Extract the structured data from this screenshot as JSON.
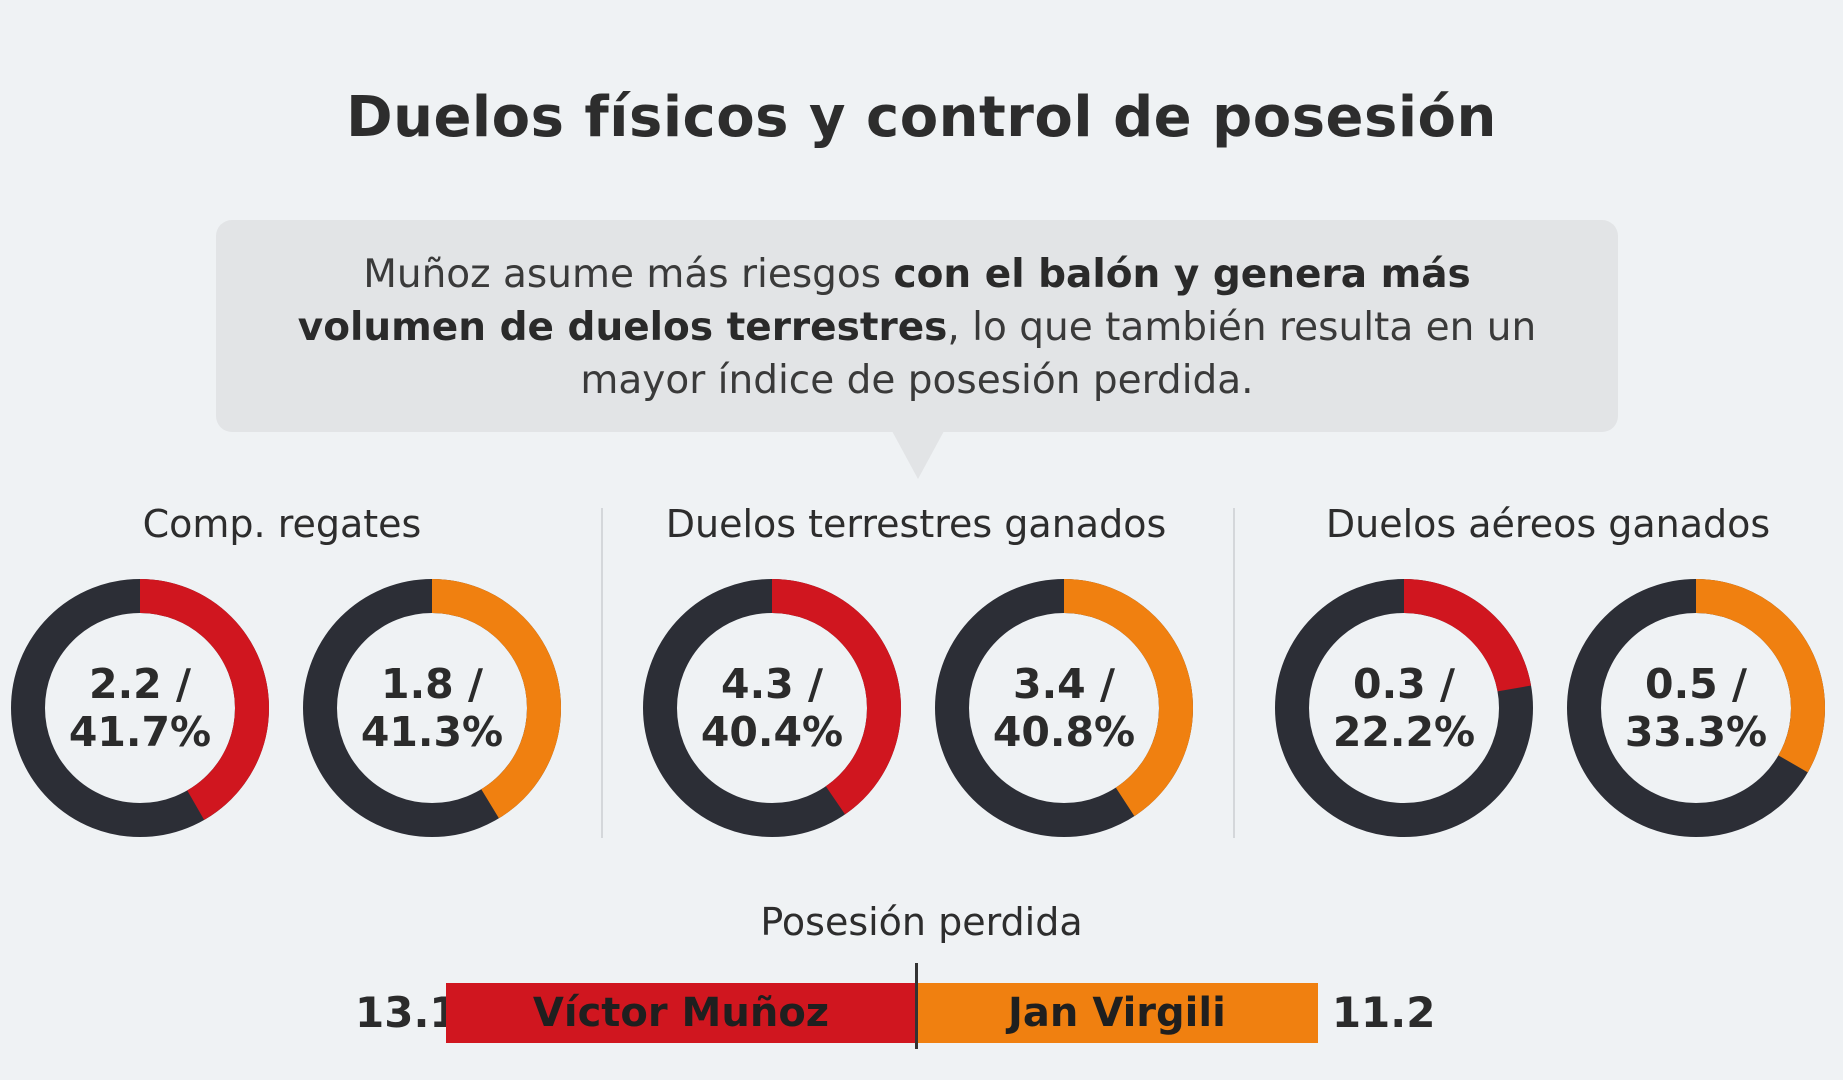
{
  "title": "Duelos físicos y control de posesión",
  "callout": {
    "part1": "Muñoz asume más riesgos ",
    "bold": "con el balón y genera más volumen de duelos terrestres",
    "part2": ", lo que también resulta en un mayor índice de posesión perdida."
  },
  "colors": {
    "player1": "#d0161f",
    "player2": "#f08010",
    "ring_base": "#2c2e36"
  },
  "chart_data": [
    {
      "type": "pie",
      "title": "Comp. regates",
      "series": [
        {
          "name": "Víctor Muñoz",
          "value": 2.2,
          "percent": 41.7,
          "label": "2.2 /",
          "label_pct": "41.7%"
        },
        {
          "name": "Jan Virgili",
          "value": 1.8,
          "percent": 41.3,
          "label": "1.8 /",
          "label_pct": "41.3%"
        }
      ]
    },
    {
      "type": "pie",
      "title": "Duelos terrestres ganados",
      "series": [
        {
          "name": "Víctor Muñoz",
          "value": 4.3,
          "percent": 40.4,
          "label": "4.3 /",
          "label_pct": "40.4%"
        },
        {
          "name": "Jan Virgili",
          "value": 3.4,
          "percent": 40.8,
          "label": "3.4 /",
          "label_pct": "40.8%"
        }
      ]
    },
    {
      "type": "pie",
      "title": "Duelos aéreos ganados",
      "series": [
        {
          "name": "Víctor Muñoz",
          "value": 0.3,
          "percent": 22.2,
          "label": "0.3 /",
          "label_pct": "22.2%"
        },
        {
          "name": "Jan Virgili",
          "value": 0.5,
          "percent": 33.3,
          "label": "0.5 /",
          "label_pct": "33.3%"
        }
      ]
    },
    {
      "type": "bar",
      "title": "Posesión perdida",
      "categories": [
        "Víctor Muñoz",
        "Jan Virgili"
      ],
      "values": [
        13.1,
        11.2
      ],
      "value_labels": [
        "13.1",
        "11.2"
      ]
    }
  ]
}
